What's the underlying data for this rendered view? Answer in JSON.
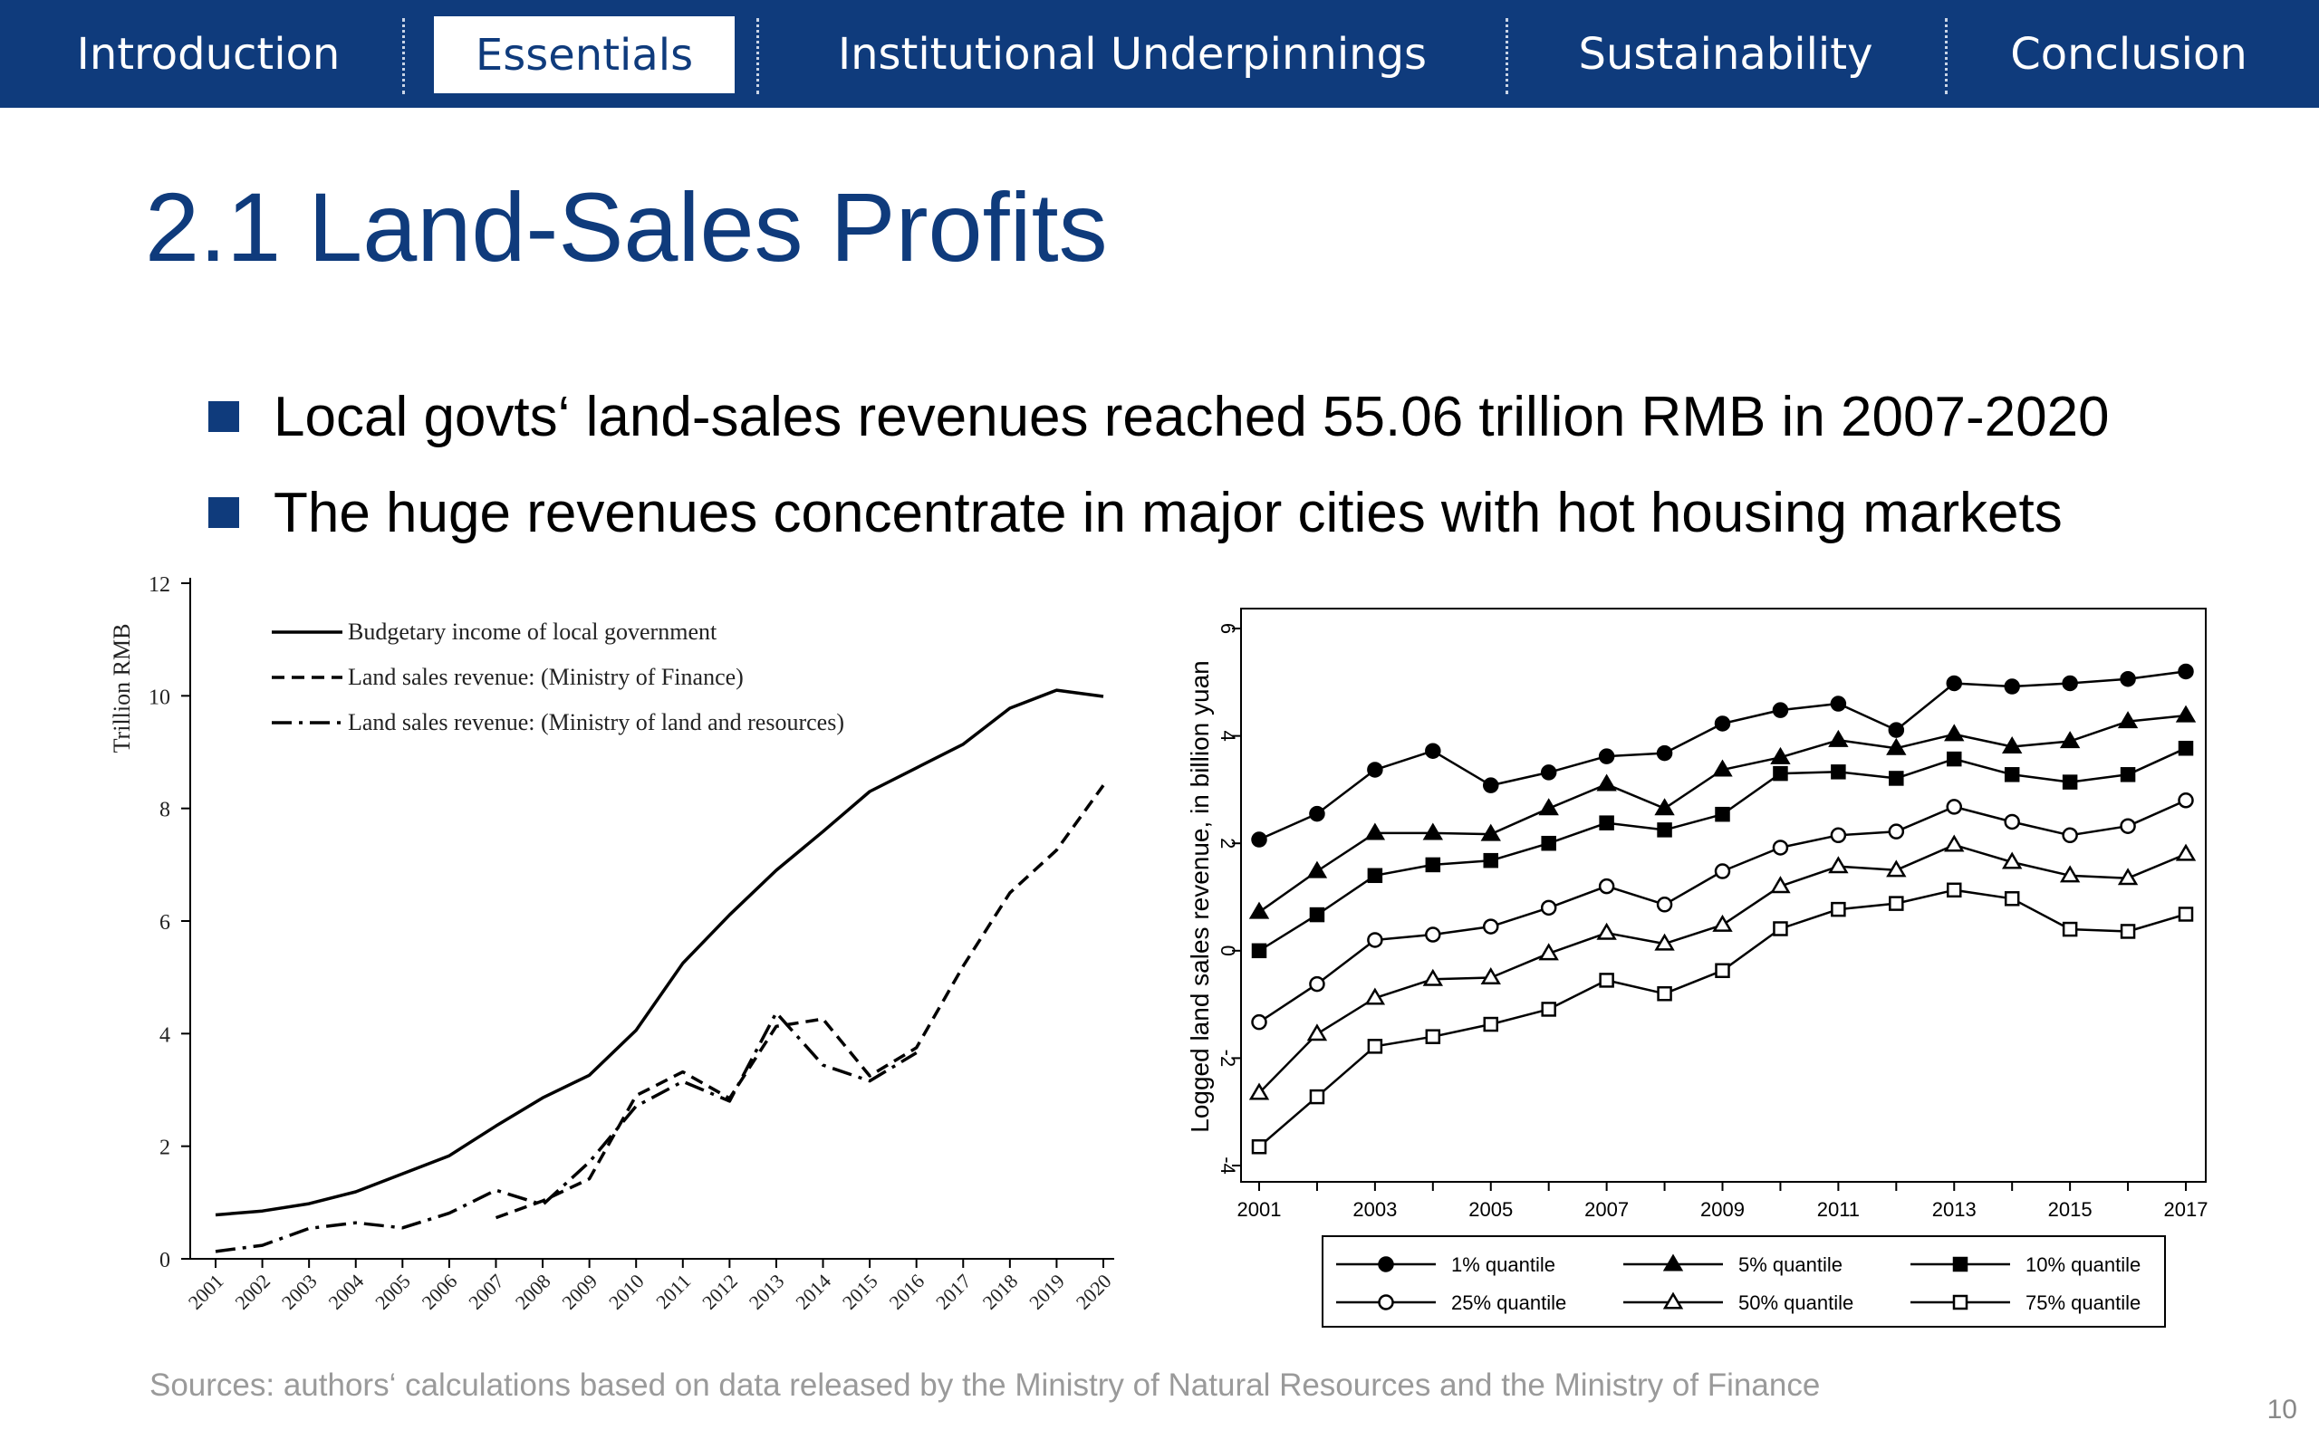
{
  "nav": {
    "tabs": [
      {
        "label": "Introduction"
      },
      {
        "label": "Essentials"
      },
      {
        "label": "Institutional Underpinnings"
      },
      {
        "label": "Sustainability"
      },
      {
        "label": "Conclusion"
      }
    ],
    "active_index": 1
  },
  "slide": {
    "title": "2.1 Land-Sales Profits",
    "bullets": [
      "Local govts‘ land-sales revenues reached 55.06 trillion RMB in 2007-2020",
      "The huge revenues concentrate in major cities with hot housing markets"
    ],
    "sources": "Sources: authors‘ calculations based on data released by the Ministry of Natural Resources and the Ministry of Finance",
    "page_number": "10"
  },
  "colors": {
    "brand": "#0f3b7c",
    "nav_text": "#ffffff",
    "text": "#000000",
    "muted": "#9a9a9a"
  },
  "chart_data": [
    {
      "type": "line",
      "ylabel": "Trillion RMB",
      "ylim": [
        0,
        12
      ],
      "yticks": [
        "0",
        "2",
        "4",
        "6",
        "8",
        "10",
        "12"
      ],
      "categories": [
        "2001",
        "2002",
        "2003",
        "2004",
        "2005",
        "2006",
        "2007",
        "2008",
        "2009",
        "2010",
        "2011",
        "2012",
        "2013",
        "2014",
        "2015",
        "2016",
        "2017",
        "2018",
        "2019",
        "2020"
      ],
      "series": [
        {
          "name": "Budgetary income of local government",
          "style": "solid",
          "values": [
            0.78,
            0.85,
            0.98,
            1.19,
            1.51,
            1.83,
            2.36,
            2.86,
            3.26,
            4.06,
            5.25,
            6.11,
            6.9,
            7.59,
            8.3,
            8.72,
            9.14,
            9.78,
            10.1,
            9.99
          ]
        },
        {
          "name": "Land sales revenue: (Ministry of Finance)",
          "style": "dashed",
          "values": [
            null,
            null,
            null,
            null,
            null,
            null,
            0.73,
            1.03,
            1.42,
            2.9,
            3.32,
            2.85,
            4.13,
            4.26,
            3.25,
            3.75,
            5.2,
            6.5,
            7.26,
            8.41
          ]
        },
        {
          "name": "Land sales revenue: (Ministry of land and resources)",
          "style": "dashdot",
          "values": [
            0.13,
            0.24,
            0.54,
            0.64,
            0.55,
            0.81,
            1.22,
            0.96,
            1.72,
            2.71,
            3.15,
            2.8,
            4.37,
            3.44,
            3.16,
            3.66,
            null,
            null,
            null,
            null
          ]
        }
      ]
    },
    {
      "type": "line",
      "ylabel": "Logged land sales revenue, in billion yuan",
      "ylim": [
        -4,
        6
      ],
      "yticks": [
        "-4",
        "-2",
        "0",
        "2",
        "4",
        "6"
      ],
      "x": [
        2001,
        2002,
        2003,
        2004,
        2005,
        2006,
        2007,
        2008,
        2009,
        2010,
        2011,
        2012,
        2013,
        2014,
        2015,
        2016,
        2017
      ],
      "xticks": [
        "2001",
        "2003",
        "2005",
        "2007",
        "2009",
        "2011",
        "2013",
        "2015",
        "2017"
      ],
      "series": [
        {
          "name": "1% quantile",
          "marker": "filled-circle",
          "values": [
            2.07,
            2.55,
            3.37,
            3.72,
            3.08,
            3.32,
            3.62,
            3.68,
            4.23,
            4.48,
            4.6,
            4.11,
            4.98,
            4.92,
            4.98,
            5.06,
            5.2
          ]
        },
        {
          "name": "5% quantile",
          "marker": "filled-triangle",
          "values": [
            0.72,
            1.48,
            2.19,
            2.19,
            2.17,
            2.65,
            3.1,
            2.65,
            3.37,
            3.6,
            3.92,
            3.77,
            4.03,
            3.8,
            3.9,
            4.27,
            4.38
          ]
        },
        {
          "name": "10% quantile",
          "marker": "filled-square",
          "values": [
            0.0,
            0.67,
            1.4,
            1.6,
            1.68,
            2.0,
            2.38,
            2.25,
            2.54,
            3.3,
            3.33,
            3.21,
            3.57,
            3.28,
            3.14,
            3.28,
            3.77
          ]
        },
        {
          "name": "25% quantile",
          "marker": "hollow-circle",
          "values": [
            -1.33,
            -0.62,
            0.2,
            0.3,
            0.45,
            0.8,
            1.2,
            0.86,
            1.48,
            1.92,
            2.15,
            2.22,
            2.68,
            2.4,
            2.15,
            2.32,
            2.8
          ]
        },
        {
          "name": "50% quantile",
          "marker": "hollow-triangle",
          "values": [
            -2.65,
            -1.55,
            -0.88,
            -0.53,
            -0.5,
            -0.05,
            0.33,
            0.13,
            0.48,
            1.2,
            1.57,
            1.5,
            1.97,
            1.65,
            1.4,
            1.35,
            1.8
          ]
        },
        {
          "name": "75% quantile",
          "marker": "hollow-square",
          "values": [
            -3.65,
            -2.72,
            -1.78,
            -1.6,
            -1.37,
            -1.09,
            -0.55,
            -0.8,
            -0.37,
            0.41,
            0.77,
            0.88,
            1.13,
            0.97,
            0.4,
            0.36,
            0.68
          ]
        }
      ]
    }
  ]
}
